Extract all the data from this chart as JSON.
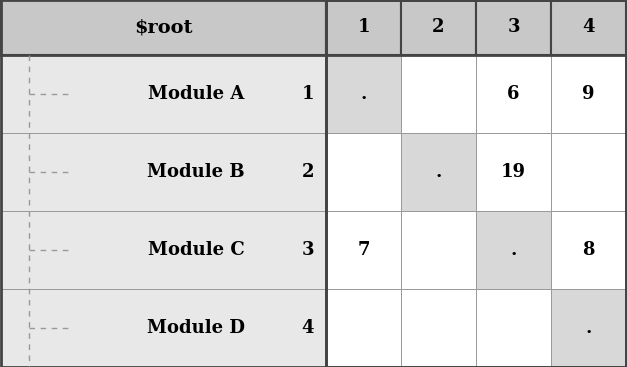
{
  "title": "$root",
  "row_labels": [
    "Module A",
    "Module B",
    "Module C",
    "Module D"
  ],
  "row_numbers": [
    "1",
    "2",
    "3",
    "4"
  ],
  "col_numbers": [
    "1",
    "2",
    "3",
    "4"
  ],
  "matrix": [
    [
      ".",
      "",
      "6",
      "9"
    ],
    [
      "",
      ".",
      "19",
      ""
    ],
    [
      "7",
      "",
      ".",
      "8"
    ],
    [
      "",
      "",
      "",
      "."
    ]
  ],
  "header_bg": "#c8c8c8",
  "row_bg": "#e8e8e8",
  "diagonal_bg": "#d8d8d8",
  "cell_bg_white": "#ffffff",
  "border_color_thick": "#444444",
  "border_color_thin": "#999999",
  "text_color": "#000000",
  "dashed_line_color": "#999999",
  "n_cols": 4,
  "n_rows": 4,
  "font_size_title": 14,
  "font_size_labels": 13,
  "font_size_numbers": 13,
  "font_size_matrix": 13
}
